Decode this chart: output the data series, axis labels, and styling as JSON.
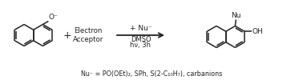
{
  "bg_color": "#ffffff",
  "line_color": "#222222",
  "figsize": [
    3.78,
    1.0
  ],
  "dpi": 100,
  "text_electron_acceptor": "Electron\nAcceptor",
  "text_plus1": "+",
  "text_plus2": "+ Nu⁻",
  "text_dmso": "DMSO",
  "text_hv": "hν, 3h",
  "text_nu_label": "Nu",
  "text_oh": "OH",
  "text_o_minus": "O⁻",
  "text_footer": "Nu⁻ = PO(OEt)₂, SPh, S(2-C₁₀H₇), carbanions",
  "lw": 1.1,
  "ring_r": 13.5
}
